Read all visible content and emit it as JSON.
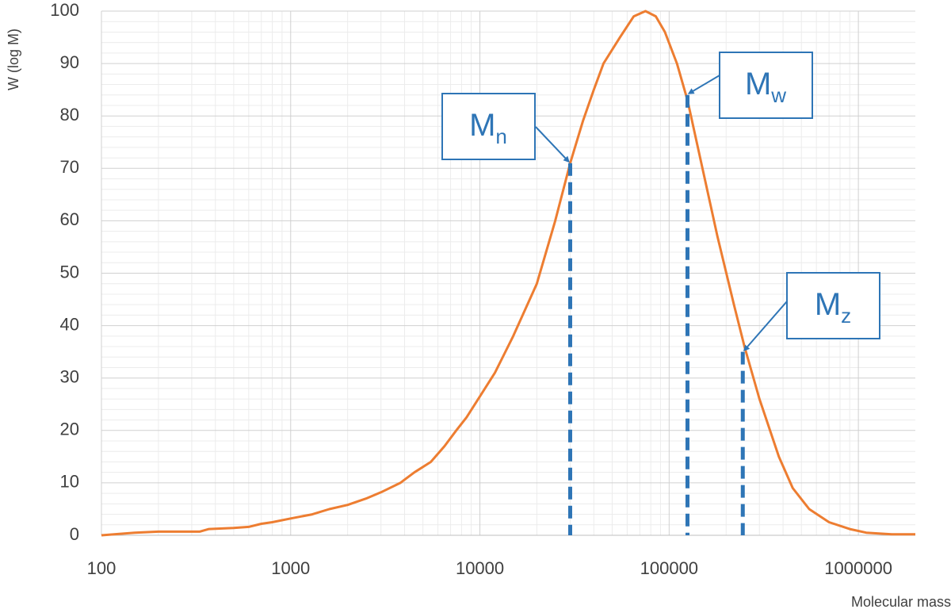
{
  "chart_data": {
    "type": "line",
    "x_label": "Molecular mass",
    "y_label": "W (log M)",
    "log_x": true,
    "grid": true,
    "minor_grid": true,
    "xlim": [
      100,
      2000000
    ],
    "xticks": [
      100,
      1000,
      10000,
      100000,
      1000000
    ],
    "ylim": [
      0,
      100
    ],
    "yticks": [
      0,
      10,
      20,
      30,
      40,
      50,
      60,
      70,
      80,
      90,
      100
    ],
    "x": [
      100,
      150,
      200,
      300,
      330,
      370,
      500,
      600,
      700,
      800,
      1000,
      1300,
      1600,
      2000,
      2500,
      3000,
      3800,
      4500,
      5500,
      6500,
      7500,
      8500,
      10000,
      12000,
      15000,
      20000,
      25000,
      30000,
      35000,
      40000,
      45000,
      55000,
      65000,
      75000,
      85000,
      95000,
      110000,
      125000,
      150000,
      180000,
      220000,
      250000,
      300000,
      380000,
      450000,
      550000,
      700000,
      900000,
      1100000,
      1500000,
      2000000
    ],
    "series": [
      {
        "color": "#ed7d31",
        "values": [
          0,
          0.5,
          0.7,
          0.7,
          0.7,
          1.2,
          1.4,
          1.6,
          2.2,
          2.5,
          3.2,
          4,
          5,
          5.8,
          7,
          8.2,
          10,
          12,
          14,
          17,
          20,
          22.5,
          26.5,
          31,
          38,
          48,
          60,
          71,
          79,
          85,
          90,
          95,
          99,
          100,
          99,
          96,
          90,
          83,
          70,
          57,
          44,
          36,
          26,
          15,
          9,
          5,
          2.5,
          1.2,
          0.5,
          0.2,
          0.2
        ]
      }
    ],
    "annotation_color": "#2e75b6",
    "annotations": [
      {
        "text": "M",
        "subscript": "n",
        "x": 30000,
        "y": 71
      },
      {
        "text": "M",
        "subscript": "w",
        "x": 125000,
        "y": 84
      },
      {
        "text": "M",
        "subscript": "z",
        "x": 245000,
        "y": 35
      }
    ]
  }
}
